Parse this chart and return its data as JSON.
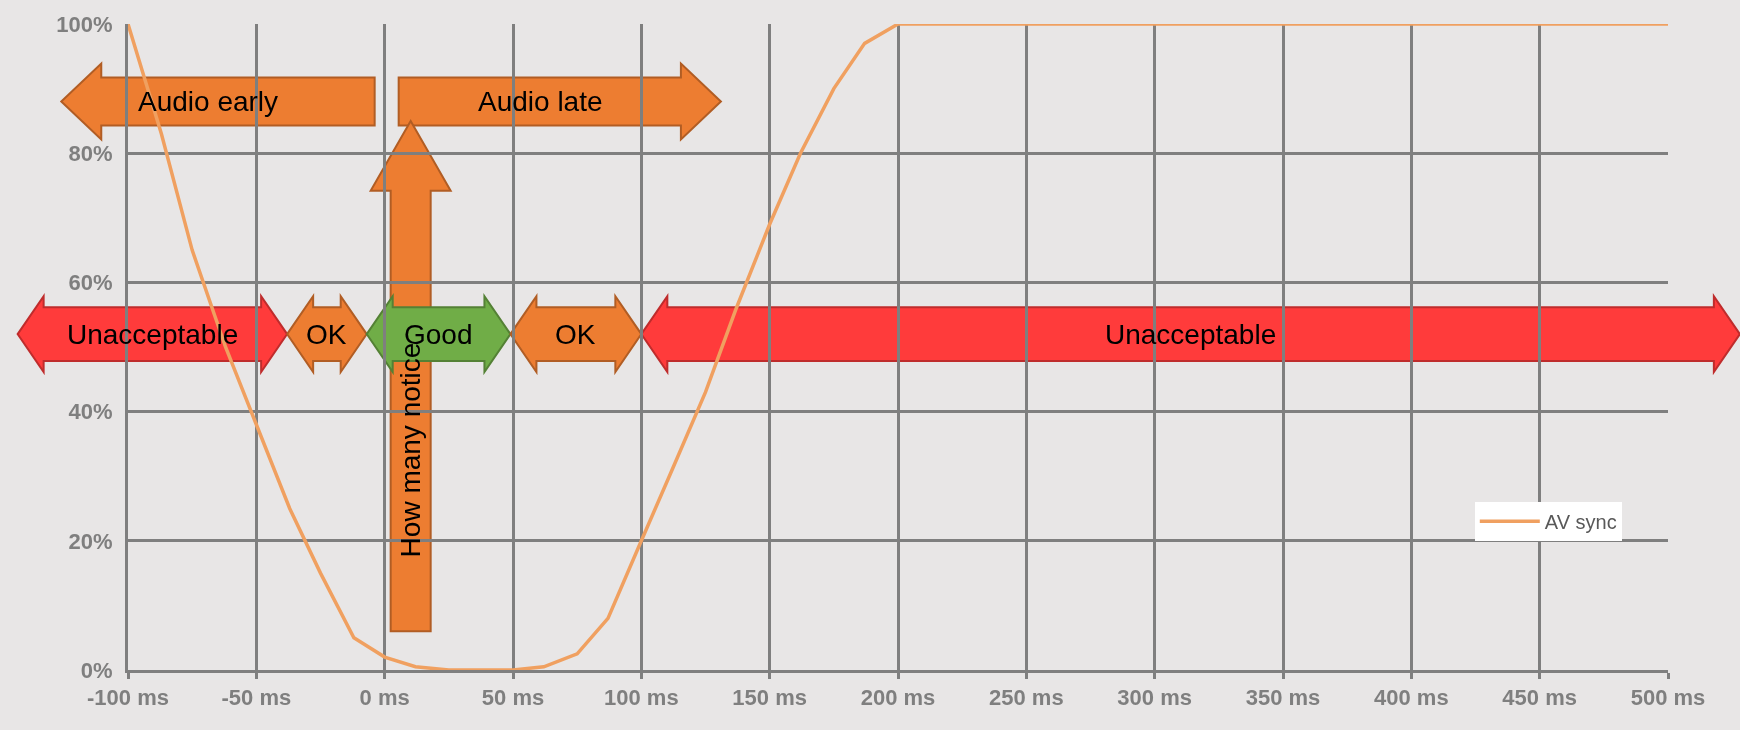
{
  "chart_data": {
    "type": "line",
    "x": [
      -100,
      -87,
      -75,
      -62,
      -50,
      -37,
      -25,
      -12,
      0,
      12,
      25,
      50,
      62,
      75,
      87,
      100,
      112,
      125,
      137,
      150,
      162,
      175,
      187,
      200,
      250,
      500
    ],
    "series": [
      {
        "name": "AV sync",
        "color": "#f0a060",
        "values": [
          100,
          83,
          65,
          50,
          38,
          25,
          15,
          5,
          2,
          0.5,
          0,
          0,
          0.5,
          2.5,
          8,
          20,
          31,
          43,
          56,
          69,
          80,
          90,
          97,
          100,
          100,
          100
        ]
      }
    ],
    "xlim": [
      -100,
      500
    ],
    "xticks": [
      {
        "value": -100,
        "label": "-100 ms"
      },
      {
        "value": -50,
        "label": "-50 ms"
      },
      {
        "value": 0,
        "label": "0 ms"
      },
      {
        "value": 50,
        "label": "50 ms"
      },
      {
        "value": 100,
        "label": "100 ms"
      },
      {
        "value": 150,
        "label": "150 ms"
      },
      {
        "value": 200,
        "label": "200 ms"
      },
      {
        "value": 250,
        "label": "250 ms"
      },
      {
        "value": 300,
        "label": "300 ms"
      },
      {
        "value": 350,
        "label": "350 ms"
      },
      {
        "value": 400,
        "label": "400 ms"
      },
      {
        "value": 450,
        "label": "450 ms"
      },
      {
        "value": 500,
        "label": "500 ms"
      }
    ],
    "ylim": [
      0,
      100
    ],
    "yticks": [
      {
        "value": 0,
        "label": "0%"
      },
      {
        "value": 20,
        "label": "20%"
      },
      {
        "value": 40,
        "label": "40%"
      },
      {
        "value": 60,
        "label": "60%"
      },
      {
        "value": 80,
        "label": "80%"
      },
      {
        "value": 100,
        "label": "100%"
      }
    ],
    "grid": true,
    "legend": "bottom right",
    "marker": "none",
    "line_style": "solid",
    "annotations": [
      "Audio early",
      "Audio late",
      "How many notice",
      "Unacceptable",
      "OK",
      "Good",
      "OK",
      "Unacceptable"
    ]
  }
}
